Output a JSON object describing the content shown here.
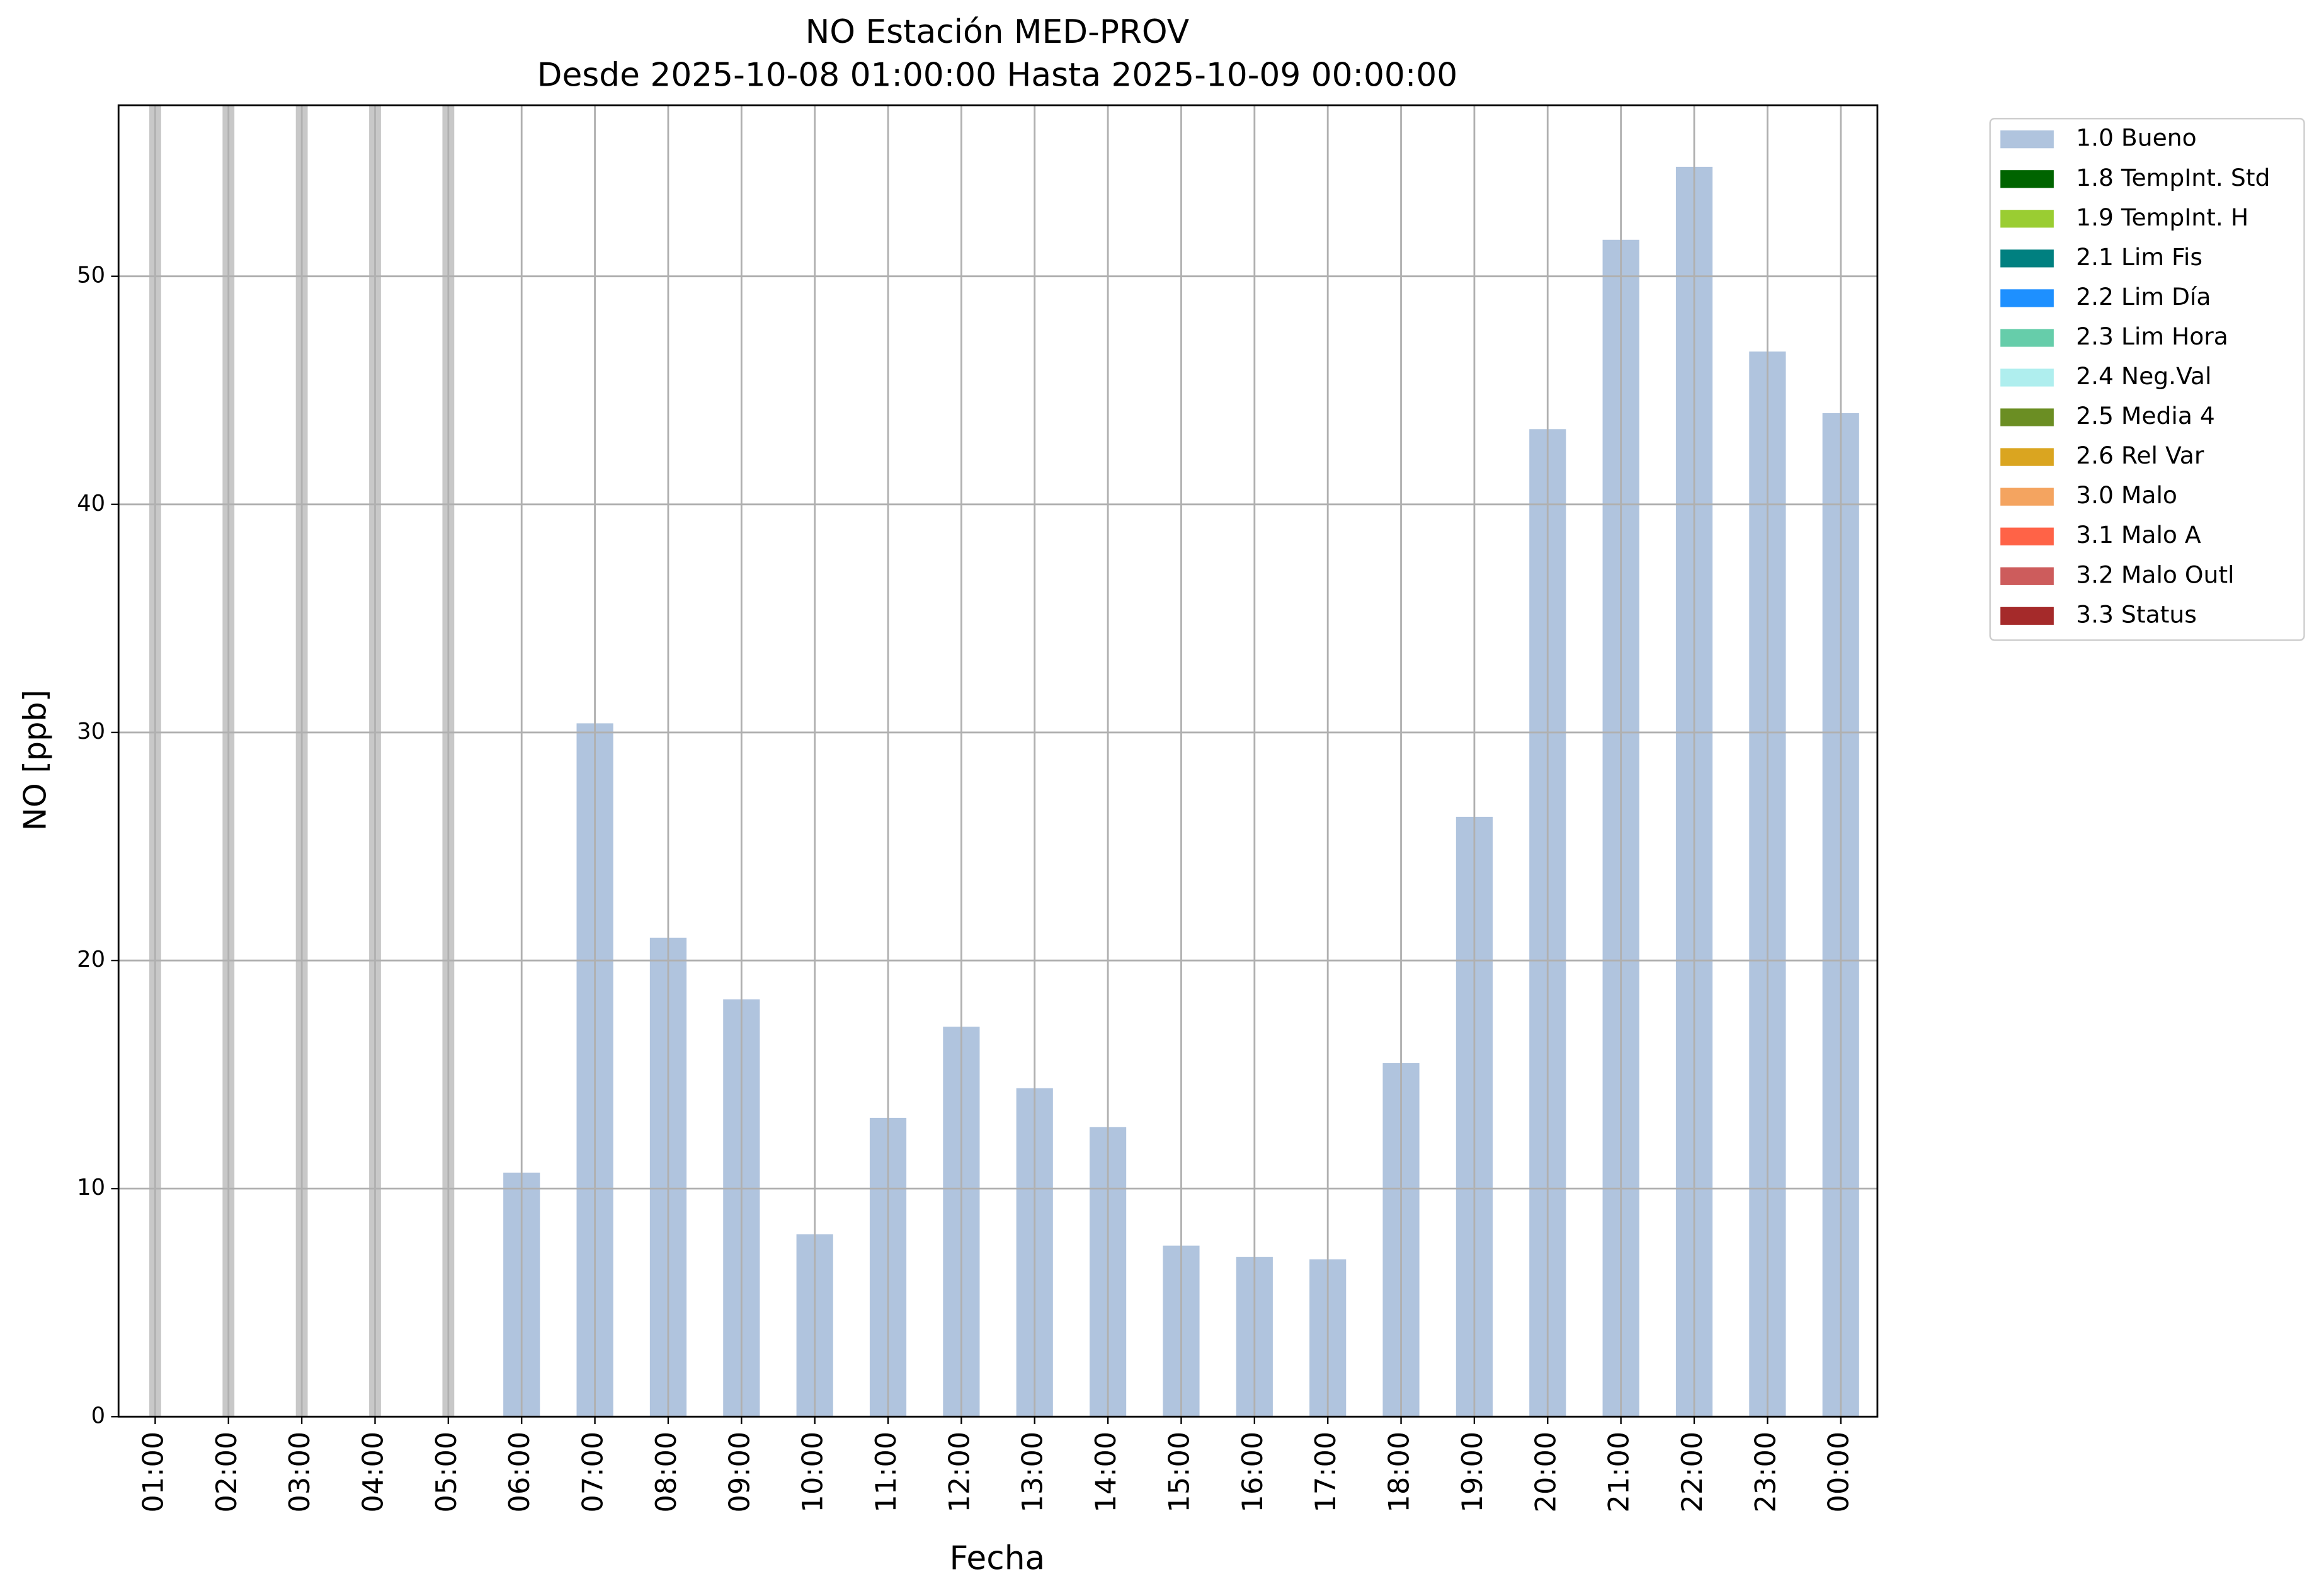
{
  "chart_data": {
    "type": "bar",
    "title": "NO Estación MED-PROV",
    "subtitle": "Desde 2025-10-08 01:00:00 Hasta 2025-10-09 00:00:00",
    "y_label": "NO [ppb]",
    "x_label": "Fecha",
    "categories": [
      "01:00",
      "02:00",
      "03:00",
      "04:00",
      "05:00",
      "06:00",
      "07:00",
      "08:00",
      "09:00",
      "10:00",
      "11:00",
      "12:00",
      "13:00",
      "14:00",
      "15:00",
      "16:00",
      "17:00",
      "18:00",
      "19:00",
      "20:00",
      "21:00",
      "22:00",
      "23:00",
      "00:00"
    ],
    "series": [
      {
        "name": "1.0 Bueno",
        "color": "#b0c4de",
        "values": [
          null,
          null,
          null,
          null,
          null,
          10.7,
          30.4,
          21.0,
          18.3,
          8.0,
          13.1,
          17.1,
          14.4,
          12.7,
          7.5,
          7.0,
          6.9,
          15.5,
          26.3,
          43.3,
          51.6,
          54.8,
          46.7,
          44.0
        ]
      },
      {
        "name": "1.8 TempInt. Std",
        "color": "#006400",
        "values": [
          null,
          null,
          null,
          null,
          null,
          null,
          null,
          null,
          null,
          null,
          null,
          null,
          null,
          null,
          null,
          null,
          null,
          null,
          null,
          null,
          null,
          null,
          null,
          null
        ]
      },
      {
        "name": "1.9 TempInt. H",
        "color": "#9acd32",
        "values": [
          null,
          null,
          null,
          null,
          null,
          null,
          null,
          null,
          null,
          null,
          null,
          null,
          null,
          null,
          null,
          null,
          null,
          null,
          null,
          null,
          null,
          null,
          null,
          null
        ]
      },
      {
        "name": "2.1 Lim Fis",
        "color": "#008080",
        "values": [
          null,
          null,
          null,
          null,
          null,
          null,
          null,
          null,
          null,
          null,
          null,
          null,
          null,
          null,
          null,
          null,
          null,
          null,
          null,
          null,
          null,
          null,
          null,
          null
        ]
      },
      {
        "name": "2.2 Lim Día",
        "color": "#1e90ff",
        "values": [
          null,
          null,
          null,
          null,
          null,
          null,
          null,
          null,
          null,
          null,
          null,
          null,
          null,
          null,
          null,
          null,
          null,
          null,
          null,
          null,
          null,
          null,
          null,
          null
        ]
      },
      {
        "name": "2.3 Lim Hora",
        "color": "#66cdaa",
        "values": [
          null,
          null,
          null,
          null,
          null,
          null,
          null,
          null,
          null,
          null,
          null,
          null,
          null,
          null,
          null,
          null,
          null,
          null,
          null,
          null,
          null,
          null,
          null,
          null
        ]
      },
      {
        "name": "2.4 Neg.Val",
        "color": "#afeeee",
        "values": [
          null,
          null,
          null,
          null,
          null,
          null,
          null,
          null,
          null,
          null,
          null,
          null,
          null,
          null,
          null,
          null,
          null,
          null,
          null,
          null,
          null,
          null,
          null,
          null
        ]
      },
      {
        "name": "2.5 Media 4",
        "color": "#6b8e23",
        "values": [
          null,
          null,
          null,
          null,
          null,
          null,
          null,
          null,
          null,
          null,
          null,
          null,
          null,
          null,
          null,
          null,
          null,
          null,
          null,
          null,
          null,
          null,
          null,
          null
        ]
      },
      {
        "name": "2.6 Rel Var",
        "color": "#daa520",
        "values": [
          null,
          null,
          null,
          null,
          null,
          null,
          null,
          null,
          null,
          null,
          null,
          null,
          null,
          null,
          null,
          null,
          null,
          null,
          null,
          null,
          null,
          null,
          null,
          null
        ]
      },
      {
        "name": "3.0 Malo",
        "color": "#f4a460",
        "values": [
          null,
          null,
          null,
          null,
          null,
          null,
          null,
          null,
          null,
          null,
          null,
          null,
          null,
          null,
          null,
          null,
          null,
          null,
          null,
          null,
          null,
          null,
          null,
          null
        ]
      },
      {
        "name": "3.1 Malo A",
        "color": "#ff6347",
        "values": [
          null,
          null,
          null,
          null,
          null,
          null,
          null,
          null,
          null,
          null,
          null,
          null,
          null,
          null,
          null,
          null,
          null,
          null,
          null,
          null,
          null,
          null,
          null,
          null
        ]
      },
      {
        "name": "3.2 Malo Outl",
        "color": "#cd5c5c",
        "values": [
          null,
          null,
          null,
          null,
          null,
          null,
          null,
          null,
          null,
          null,
          null,
          null,
          null,
          null,
          null,
          null,
          null,
          null,
          null,
          null,
          null,
          null,
          null,
          null
        ]
      },
      {
        "name": "3.3 Status",
        "color": "#a52a2a",
        "values": [
          null,
          null,
          null,
          null,
          null,
          null,
          null,
          null,
          null,
          null,
          null,
          null,
          null,
          null,
          null,
          null,
          null,
          null,
          null,
          null,
          null,
          null,
          null,
          null
        ]
      }
    ],
    "ylim": [
      0,
      57.5
    ],
    "yticks": [
      0,
      10,
      20,
      30,
      40,
      50
    ],
    "grid": true,
    "legend": "outside upper right"
  }
}
